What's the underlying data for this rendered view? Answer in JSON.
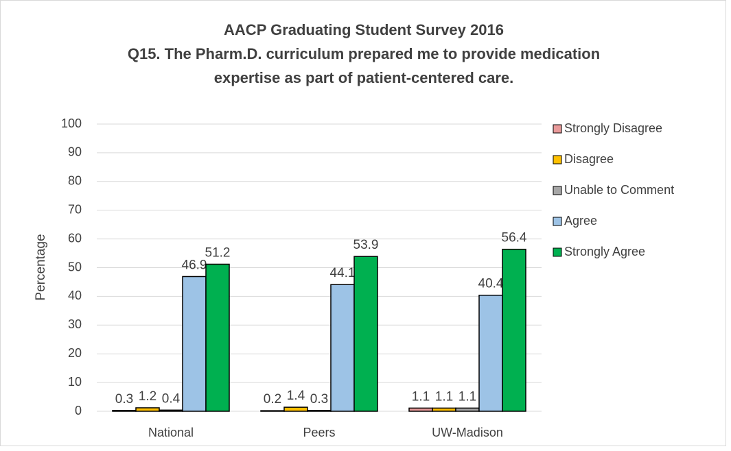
{
  "chart_data": {
    "type": "bar",
    "title": "AACP Graduating Student Survey 2016",
    "subtitle": [
      "Q15. The Pharm.D. curriculum prepared me to provide medication",
      "expertise as part of patient-centered care."
    ],
    "y_label": "Percentage",
    "categories": [
      "National",
      "Peers",
      "UW-Madison"
    ],
    "series": [
      {
        "name": "Strongly Disagree",
        "color": "#e99a9a",
        "values": [
          0.3,
          0.2,
          1.1
        ]
      },
      {
        "name": "Disagree",
        "color": "#ffc000",
        "values": [
          1.2,
          1.4,
          1.1
        ]
      },
      {
        "name": "Unable to Comment",
        "color": "#a6a6a6",
        "values": [
          0.4,
          0.3,
          1.1
        ]
      },
      {
        "name": "Agree",
        "color": "#9dc3e6",
        "values": [
          46.9,
          44.1,
          40.4
        ]
      },
      {
        "name": "Strongly Agree",
        "color": "#00b050",
        "values": [
          51.2,
          53.9,
          56.4
        ]
      }
    ],
    "ylim": [
      0,
      100
    ],
    "yticks": [
      0,
      10,
      20,
      30,
      40,
      50,
      60,
      70,
      80,
      90,
      100
    ],
    "grid": true,
    "legend": "right"
  }
}
